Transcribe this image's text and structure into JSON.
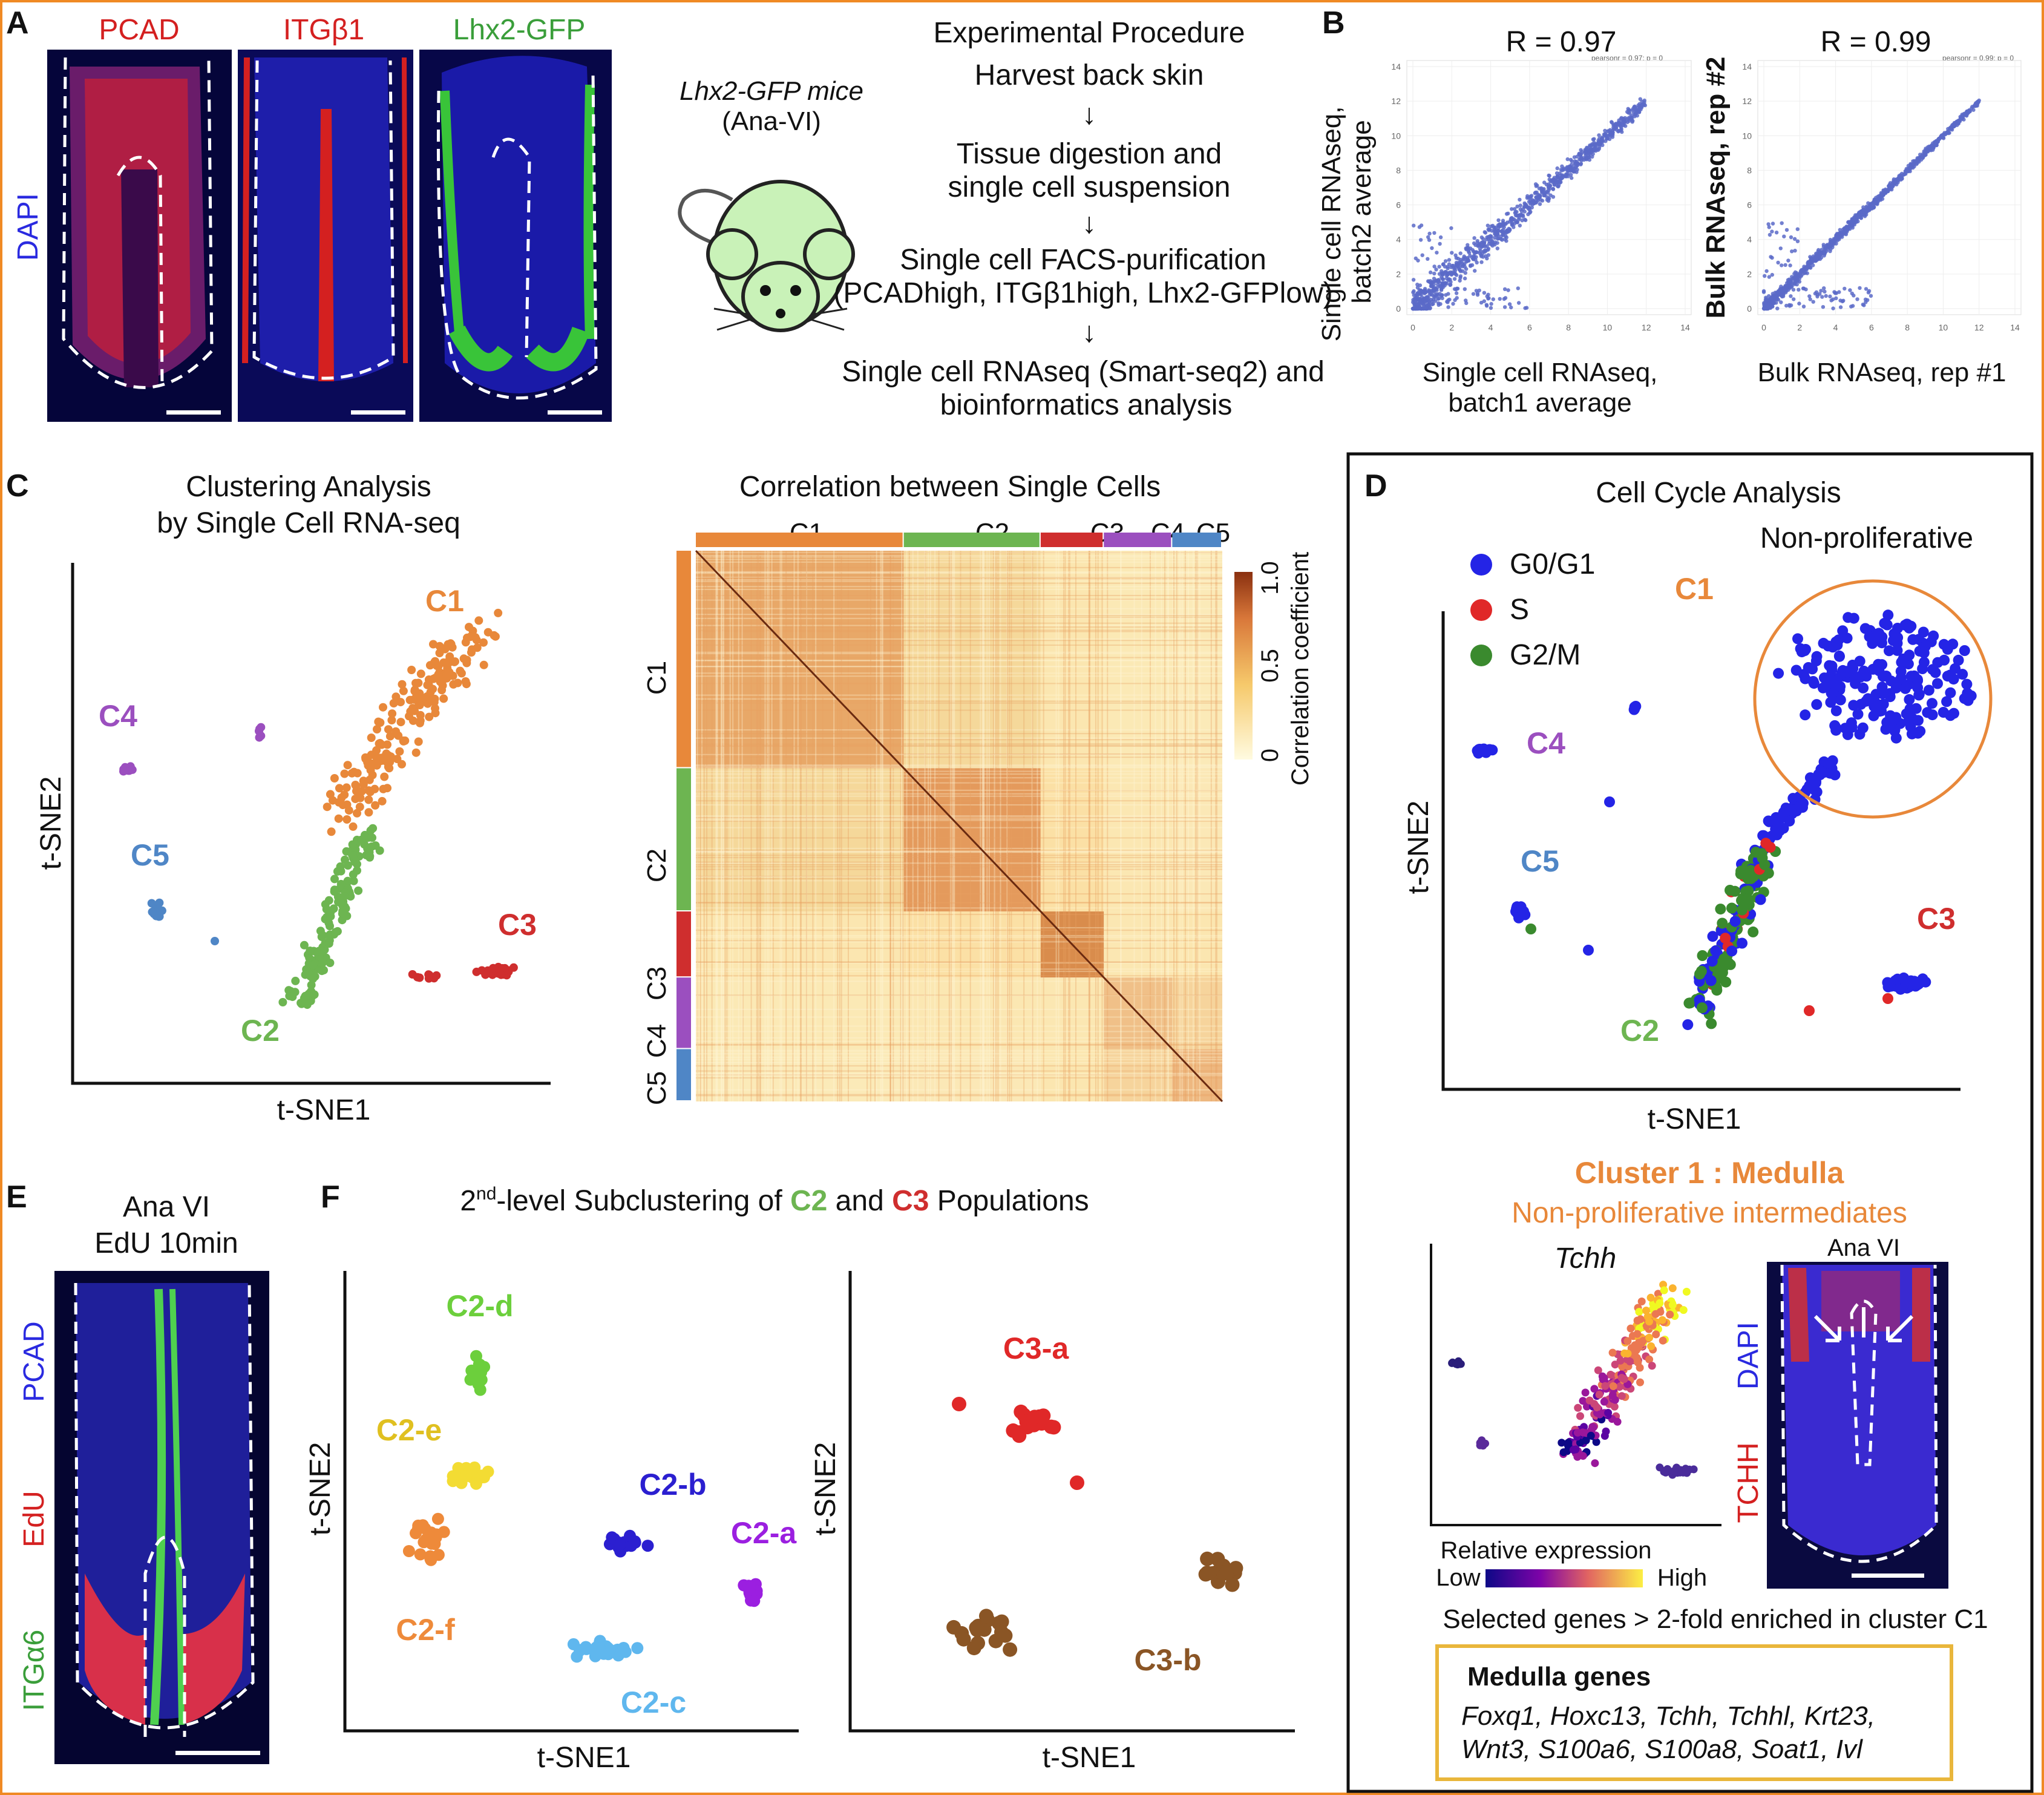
{
  "colors": {
    "c1": "#e8883a",
    "c2": "#6db551",
    "c3": "#cf2e2e",
    "c4": "#9b4fbf",
    "c5": "#4f86c6",
    "g0g1": "#2424e6",
    "s": "#e02828",
    "g2m": "#3a8a2e",
    "c2a": "#9b1fe0",
    "c2b": "#2b1fd0",
    "c2c": "#5fb7ee",
    "c2d": "#6ccf3c",
    "c2e": "#f3dc33",
    "c2f": "#ee8a3a",
    "c3a": "#e02828",
    "c3b": "#8a5525",
    "frame": "#f08a24",
    "medulla_box": "#e9b63b"
  },
  "panel_labels": {
    "a": "A",
    "b": "B",
    "c": "C",
    "d": "D",
    "e": "E",
    "f": "F"
  },
  "panel_a": {
    "img1": "PCAD",
    "img2": "ITGβ1",
    "img3": "Lhx2-GFP",
    "side": "DAPI",
    "mouse_line1": "Lhx2-GFP mice",
    "mouse_line2": "(Ana-VI)",
    "procedure_title": "Experimental Procedure",
    "steps": [
      "Harvest back skin",
      "Tissue digestion and",
      "single cell suspension",
      "Single cell FACS-purification",
      "(PCADhigh, ITGβ1high, Lhx2-GFPlow)",
      "Single cell RNAseq (Smart-seq2) and",
      "bioinformatics analysis"
    ],
    "arrow": "↓"
  },
  "panel_b": {
    "r1": "R = 0.97",
    "r2": "R = 0.99",
    "p1": "pearsonr = 0.97; p = 0",
    "p2": "pearsonr = 0.99; p = 0",
    "y1a": "Single cell RNAseq,",
    "y1b": "batch2 average",
    "x1a": "Single cell RNAseq,",
    "x1b": "batch1 average",
    "y2": "Bulk RNAseq, rep #2",
    "x2": "Bulk RNAseq, rep #1",
    "ticks": [
      "0",
      "2",
      "4",
      "6",
      "8",
      "10",
      "12",
      "14"
    ]
  },
  "panel_c": {
    "title1": "Clustering Analysis",
    "title2": "by Single Cell RNA-seq",
    "xlabel": "t-SNE1",
    "ylabel": "t-SNE2",
    "clusters": [
      "C1",
      "C2",
      "C3",
      "C4",
      "C5"
    ],
    "heat_title": "Correlation between Single Cells",
    "cbar_ticks": [
      "1.0",
      "0.5",
      "0"
    ],
    "cbar_label": "Correlation coefficient"
  },
  "panel_d": {
    "title": "Cell Cycle Analysis",
    "nonprolif": "Non-proliferative",
    "legend": [
      "G0/G1",
      "S",
      "G2/M"
    ],
    "xlabel": "t-SNE1",
    "ylabel": "t-SNE2",
    "cluster_title": "Cluster 1 : Medulla",
    "subtitle": "Non-proliferative intermediates",
    "gene": "Tchh",
    "rel_expr": "Relative expression",
    "low": "Low",
    "high": "High",
    "ana": "Ana VI",
    "dapi": "DAPI",
    "tchh": "TCHH",
    "selected": "Selected genes > 2-fold enriched in cluster C1",
    "medulla_title": "Medulla genes",
    "medulla_line1": "Foxq1, Hoxc13, Tchh, Tchhl, Krt23,",
    "medulla_line2": "Wnt3, S100a6, S100a8, Soat1, Ivl"
  },
  "panel_e": {
    "title1": "Ana VI",
    "title2": "EdU 10min",
    "pcad": "PCAD",
    "edu": "EdU",
    "itg": "ITGα6"
  },
  "panel_f": {
    "title_pre": "2",
    "title_sup": "nd",
    "title_mid": "-level Subclustering of ",
    "c2": "C2",
    "and": " and ",
    "c3": "C3",
    "title_post": " Populations",
    "xlabel": "t-SNE1",
    "ylabel": "t-SNE2",
    "subclusters": [
      "C2-a",
      "C2-b",
      "C2-c",
      "C2-d",
      "C2-e",
      "C2-f",
      "C3-a",
      "C3-b"
    ]
  }
}
